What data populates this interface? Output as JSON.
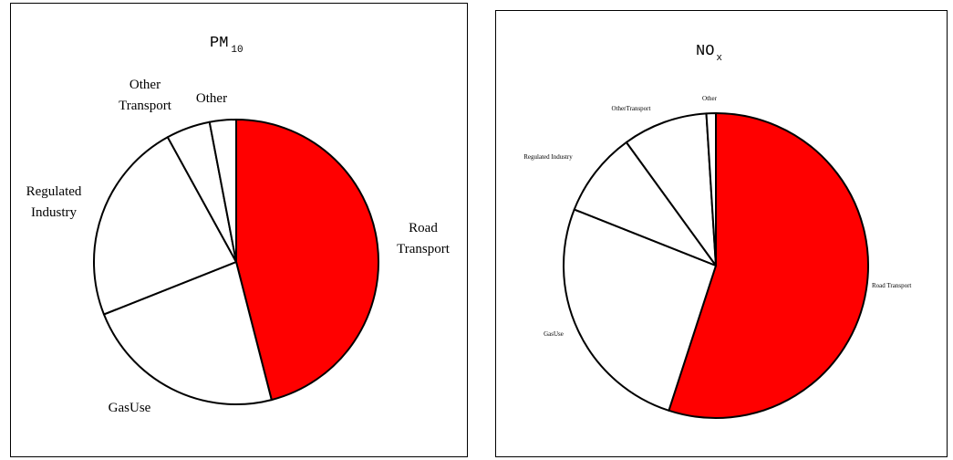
{
  "chart_data": [
    {
      "type": "pie",
      "title": {
        "main": "PM",
        "sub": "10"
      },
      "start_angle_deg": 0,
      "direction": "clockwise",
      "slices": [
        {
          "name": "Road Transport",
          "label_lines": [
            "Road",
            "Transport"
          ],
          "value": 46,
          "color": "#ff0000"
        },
        {
          "name": "Gas Use",
          "label_lines": [
            "GasUse"
          ],
          "value": 23,
          "color": "#ffffff"
        },
        {
          "name": "Regulated Industry",
          "label_lines": [
            "Regulated",
            "Industry"
          ],
          "value": 23,
          "color": "#ffffff"
        },
        {
          "name": "Other Transport",
          "label_lines": [
            "Other",
            "Transport"
          ],
          "value": 5,
          "color": "#ffffff"
        },
        {
          "name": "Other",
          "label_lines": [
            "Other"
          ],
          "value": 3,
          "color": "#ffffff"
        }
      ]
    },
    {
      "type": "pie",
      "title": {
        "main": "NO",
        "sub": "x"
      },
      "start_angle_deg": 0,
      "direction": "clockwise",
      "slices": [
        {
          "name": "Road Transport",
          "label_lines": [
            "Road Transport"
          ],
          "value": 55,
          "color": "#ff0000"
        },
        {
          "name": "Gas Use",
          "label_lines": [
            "GasUse"
          ],
          "value": 26,
          "color": "#ffffff"
        },
        {
          "name": "Regulated Industry",
          "label_lines": [
            "Regulated Industry"
          ],
          "value": 9,
          "color": "#ffffff"
        },
        {
          "name": "Other Transport",
          "label_lines": [
            "OtherTransport"
          ],
          "value": 9,
          "color": "#ffffff"
        },
        {
          "name": "Other",
          "label_lines": [
            "Other"
          ],
          "value": 1,
          "color": "#ffffff"
        }
      ]
    }
  ]
}
